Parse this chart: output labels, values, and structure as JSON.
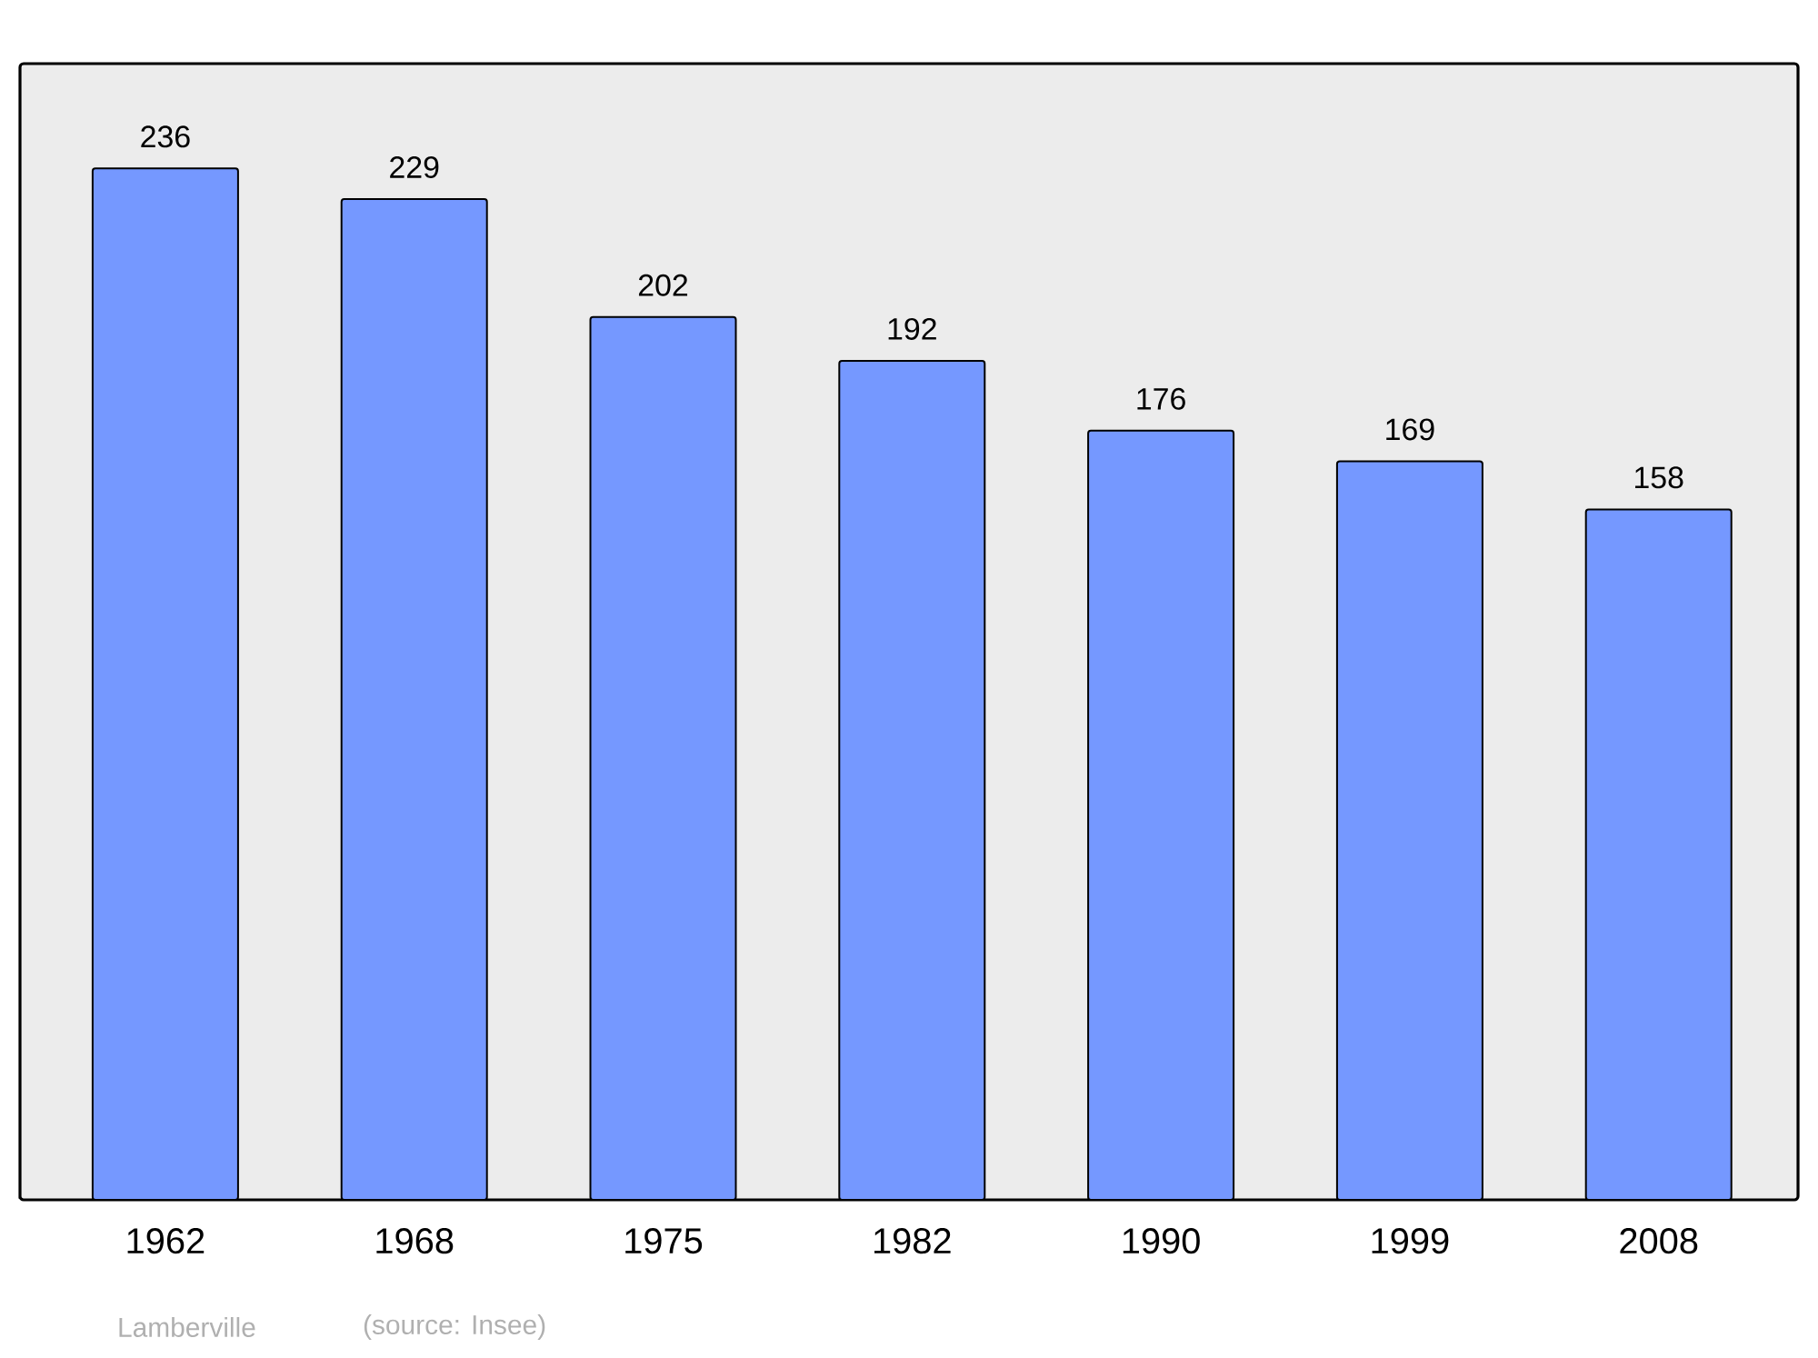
{
  "chart_data": {
    "type": "bar",
    "categories": [
      "1962",
      "1968",
      "1975",
      "1982",
      "1990",
      "1999",
      "2008"
    ],
    "values": [
      236,
      229,
      202,
      192,
      176,
      169,
      158
    ],
    "color": "#7598ff",
    "data_labels": true,
    "ylim": [
      0,
      260
    ],
    "tick_labels": "x",
    "annotations": [
      "Lamberville",
      "(source: Insee)"
    ]
  }
}
